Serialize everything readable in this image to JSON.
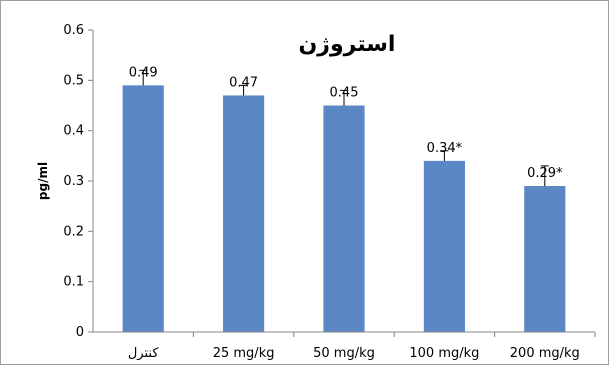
{
  "chart_data": {
    "type": "bar",
    "title": "استروژن",
    "xlabel": "",
    "ylabel": "pg/ml",
    "ylim": [
      0,
      0.6
    ],
    "yticks": [
      "0",
      "0.1",
      "0.2",
      "0.3",
      "0.4",
      "0.5",
      "0.6"
    ],
    "ytick_values": [
      0,
      0.1,
      0.2,
      0.3,
      0.4,
      0.5,
      0.6
    ],
    "categories": [
      "کنترل",
      "25 mg/kg",
      "50 mg/kg",
      "100 mg/kg",
      "200 mg/kg"
    ],
    "values": [
      0.49,
      0.47,
      0.45,
      0.34,
      0.29
    ],
    "errors": [
      0.03,
      0.02,
      0.03,
      0.02,
      0.04
    ],
    "data_labels": [
      "0.49",
      "0.47",
      "0.45",
      "0.34*",
      "0.29*"
    ],
    "grid": false,
    "bar_color": "#5b87c5"
  }
}
